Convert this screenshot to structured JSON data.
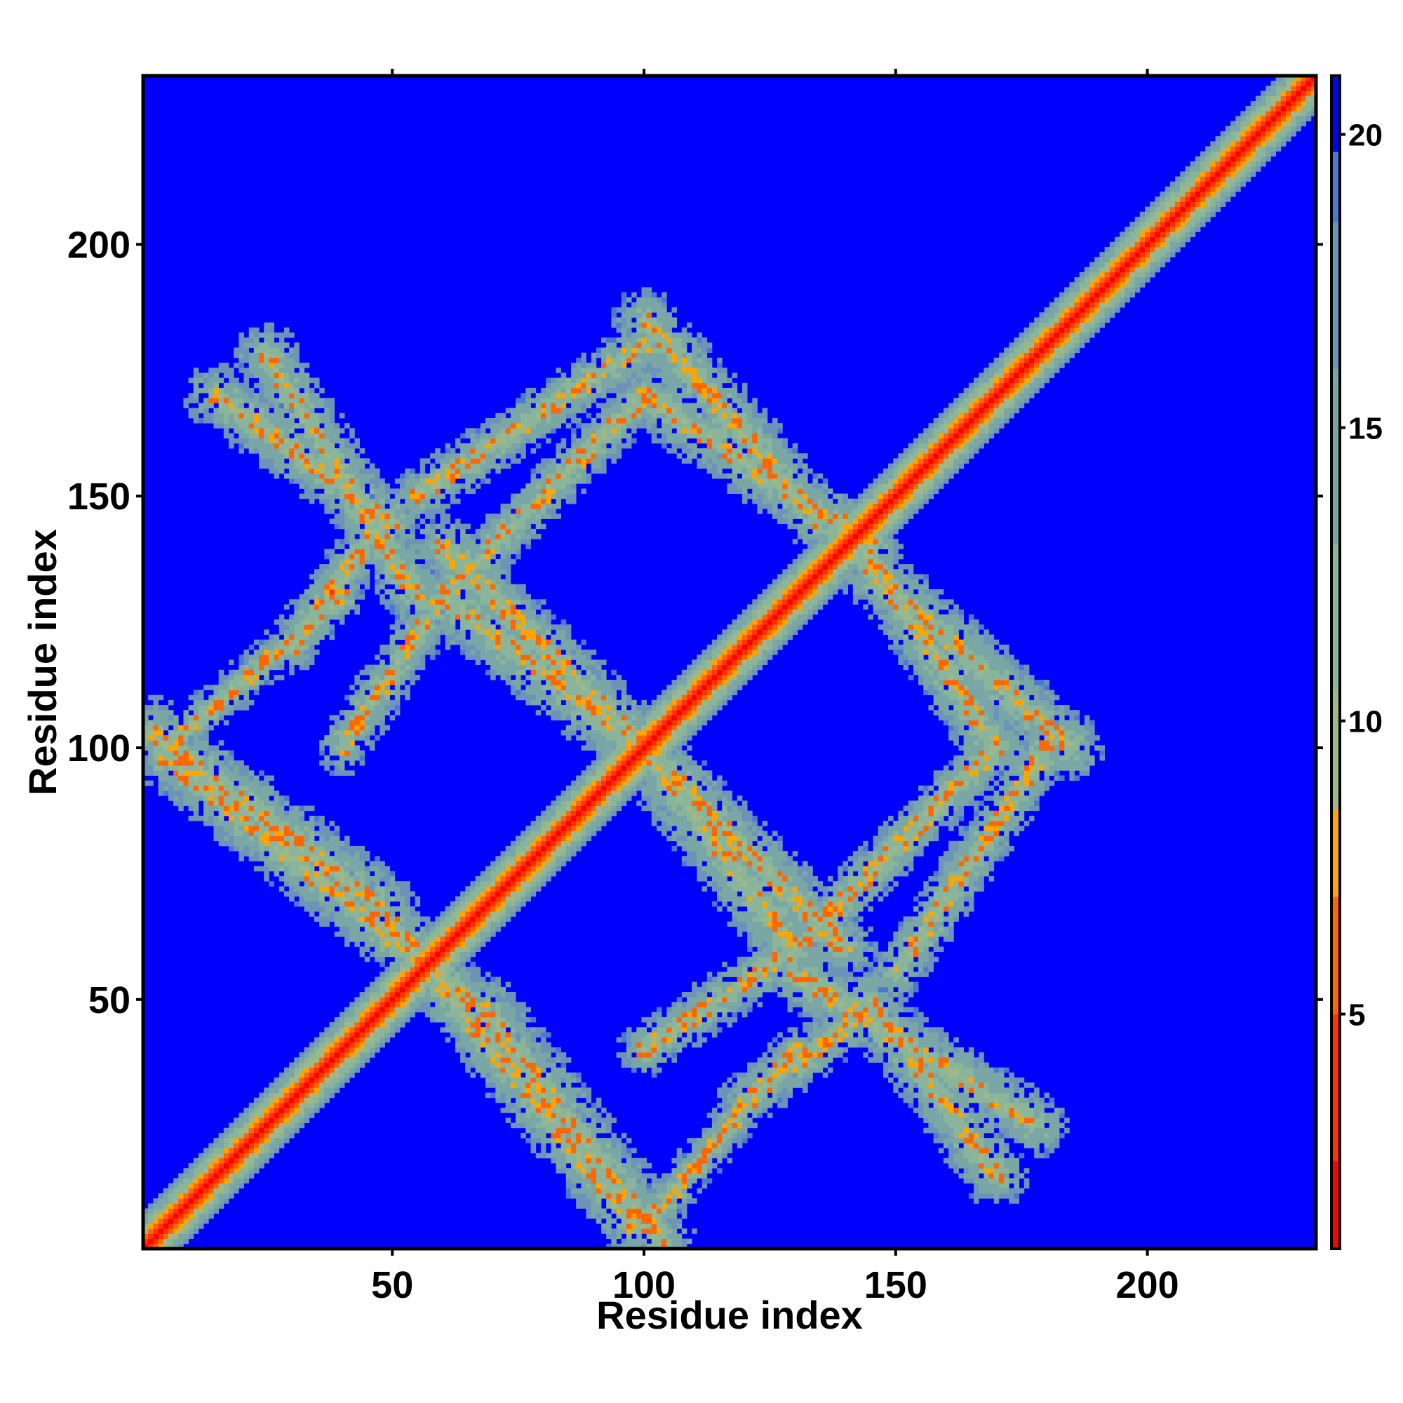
{
  "chart_data": {
    "type": "heatmap",
    "title": "",
    "xlabel": "Residue index",
    "ylabel": "Residue index",
    "n_residues": 233,
    "xlim": [
      1,
      233
    ],
    "ylim": [
      1,
      233
    ],
    "x_ticks": [
      50,
      100,
      150,
      200
    ],
    "y_ticks": [
      50,
      100,
      150,
      200
    ],
    "x_tick_labels": [
      "50",
      "100",
      "150",
      "200"
    ],
    "y_tick_labels": [
      "50",
      "100",
      "150",
      "200"
    ],
    "colorbar": {
      "range": [
        1,
        21
      ],
      "ticks": [
        5,
        10,
        15,
        20
      ],
      "tick_labels": [
        "5",
        "10",
        "15",
        "20"
      ],
      "colors": [
        {
          "max": 2.5,
          "color": "#ff0000"
        },
        {
          "max": 5,
          "color": "#ff3300"
        },
        {
          "max": 7,
          "color": "#ff6600"
        },
        {
          "max": 8.5,
          "color": "#ffa500"
        },
        {
          "max": 10.5,
          "color": "#9fb88a"
        },
        {
          "max": 13,
          "color": "#8ab59a"
        },
        {
          "max": 16,
          "color": "#7aa6a6"
        },
        {
          "max": 18.5,
          "color": "#6e93b8"
        },
        {
          "max": 19.7,
          "color": "#4a7ad0"
        },
        {
          "max": 100,
          "color": "#0000ff"
        }
      ]
    },
    "structure": {
      "diagonal": {
        "band_halfwidth": 7
      },
      "bands": [
        {
          "a": [
            2,
            103
          ],
          "b": [
            48,
            68
          ],
          "halfwidth": 6
        },
        {
          "a": [
            50,
            65
          ],
          "b": [
            98,
            5
          ],
          "halfwidth": 5
        },
        {
          "a": [
            15,
            170
          ],
          "b": [
            50,
            145
          ],
          "halfwidth": 5
        },
        {
          "a": [
            60,
            140
          ],
          "b": [
            100,
            100
          ],
          "halfwidth": 5
        },
        {
          "a": [
            100,
            100
          ],
          "b": [
            130,
            60
          ],
          "halfwidth": 6
        },
        {
          "a": [
            130,
            55
          ],
          "b": [
            178,
            25
          ],
          "halfwidth": 5
        },
        {
          "a": [
            100,
            170
          ],
          "b": [
            145,
            140
          ],
          "halfwidth": 5
        },
        {
          "a": [
            145,
            135
          ],
          "b": [
            185,
            100
          ],
          "halfwidth": 5
        },
        {
          "a": [
            55,
            150
          ],
          "b": [
            100,
            180
          ],
          "halfwidth": 4
        },
        {
          "a": [
            30,
            120
          ],
          "b": [
            48,
            145
          ],
          "halfwidth": 4
        },
        {
          "a": [
            100,
            40
          ],
          "b": [
            130,
            60
          ],
          "halfwidth": 4
        },
        {
          "a": [
            130,
            60
          ],
          "b": [
            170,
            100
          ],
          "halfwidth": 4
        },
        {
          "a": [
            100,
            5
          ],
          "b": [
            130,
            40
          ],
          "halfwidth": 3
        }
      ],
      "symmetric": true
    }
  }
}
